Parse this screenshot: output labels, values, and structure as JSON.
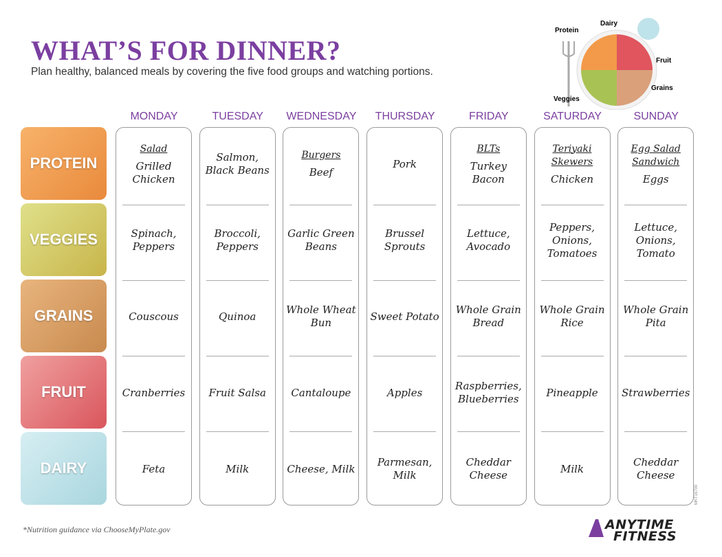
{
  "header": {
    "title": "WHAT’S FOR DINNER?",
    "subtitle": "Plan healthy, balanced meals by covering the five food groups and watching portions."
  },
  "plate": {
    "protein": "Protein",
    "dairy": "Dairy",
    "fruit": "Fruit",
    "grains": "Grains",
    "veggies": "Veggies"
  },
  "groups": [
    "PROTEIN",
    "VEGGIES",
    "GRAINS",
    "FRUIT",
    "DAIRY"
  ],
  "days": [
    {
      "name": "MONDAY",
      "dish": "Salad",
      "entries": [
        "Grilled Chicken",
        "Spinach, Peppers",
        "Couscous",
        "Cranberries",
        "Feta"
      ]
    },
    {
      "name": "TUESDAY",
      "entries": [
        "Salmon, Black Beans",
        "Broccoli, Peppers",
        "Quinoa",
        "Fruit Salsa",
        "Milk"
      ]
    },
    {
      "name": "WEDNESDAY",
      "dish": "Burgers",
      "entries": [
        "Beef",
        "Garlic Green Beans",
        "Whole Wheat Bun",
        "Cantaloupe",
        "Cheese, Milk"
      ]
    },
    {
      "name": "THURSDAY",
      "entries": [
        "Pork",
        "Brussel Sprouts",
        "Sweet Potato",
        "Apples",
        "Parmesan, Milk"
      ]
    },
    {
      "name": "FRIDAY",
      "dish": "BLTs",
      "entries": [
        "Turkey Bacon",
        "Lettuce, Avocado",
        "Whole Grain Bread",
        "Raspberries, Blueberries",
        "Cheddar Cheese"
      ]
    },
    {
      "name": "SATURDAY",
      "dish": "Teriyaki Skewers",
      "entries": [
        "Chicken",
        "Peppers, Onions, Tomatoes",
        "Whole Grain Rice",
        "Pineapple",
        "Milk"
      ]
    },
    {
      "name": "SUNDAY",
      "dish": "Egg Salad Sandwich",
      "entries": [
        "Eggs",
        "Lettuce, Onions, Tomato",
        "Whole Grain Pita",
        "Strawberries",
        "Cheddar Cheese"
      ]
    }
  ],
  "footer": {
    "note": "*Nutrition guidance via ChooseMyPlate.gov",
    "code": "MKT16700",
    "logo_top": "ANYTIME",
    "logo_bottom": "FITNESS"
  }
}
